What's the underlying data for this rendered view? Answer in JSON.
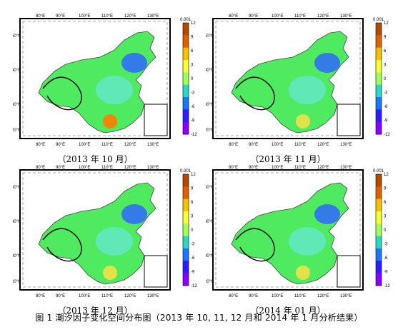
{
  "figure_caption": "图 1 潮汐因子变化空间分布图（2013 年 10, 11, 12 月和 2014 年 1 月分析结果）",
  "colorbar": {
    "unit": "0.001",
    "ticks": [
      "12",
      "9",
      "6",
      "3",
      "0",
      "-3",
      "-6",
      "-9",
      "-12"
    ],
    "colors": [
      "#b24a00",
      "#e06000",
      "#f2c200",
      "#f7ff33",
      "#9cff5a",
      "#2bd6c3",
      "#1a76ff",
      "#2d1cff",
      "#8d00ff"
    ]
  },
  "axis_labels": {
    "top_lon": [
      "80°E",
      "90°E",
      "100°E",
      "110°E",
      "120°E",
      "130°E"
    ],
    "bottom_lon": [
      "80°E",
      "90°E",
      "100°E",
      "110°E",
      "120°E",
      "130°E"
    ],
    "lat": [
      "50°N",
      "40°N",
      "30°N",
      "20°N"
    ]
  },
  "panels": [
    {
      "caption": "（2013 年 10 月）"
    },
    {
      "caption": "（2013 年 11 月）"
    },
    {
      "caption": "（2013 年 12 月）"
    },
    {
      "caption": "（2014 年 01 月）"
    }
  ]
}
